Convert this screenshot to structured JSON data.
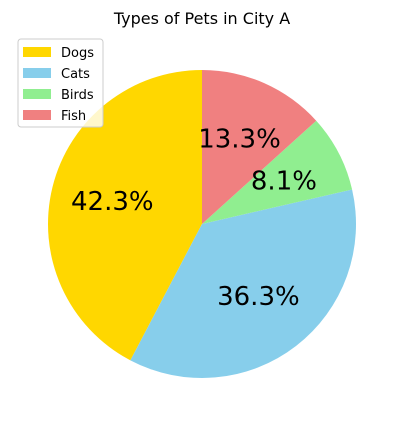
{
  "chart_data": {
    "type": "pie",
    "title": "Types of Pets in City A",
    "categories": [
      "Dogs",
      "Cats",
      "Birds",
      "Fish"
    ],
    "values": [
      42.3,
      36.3,
      8.1,
      13.3
    ],
    "labels": [
      "42.3%",
      "36.3%",
      "8.1%",
      "13.3%"
    ],
    "colors": [
      "#ffd700",
      "#87ceeb",
      "#90ee90",
      "#f08080"
    ],
    "start_angle_deg": 90,
    "direction": "counterclockwise",
    "legend": "upper-left"
  }
}
